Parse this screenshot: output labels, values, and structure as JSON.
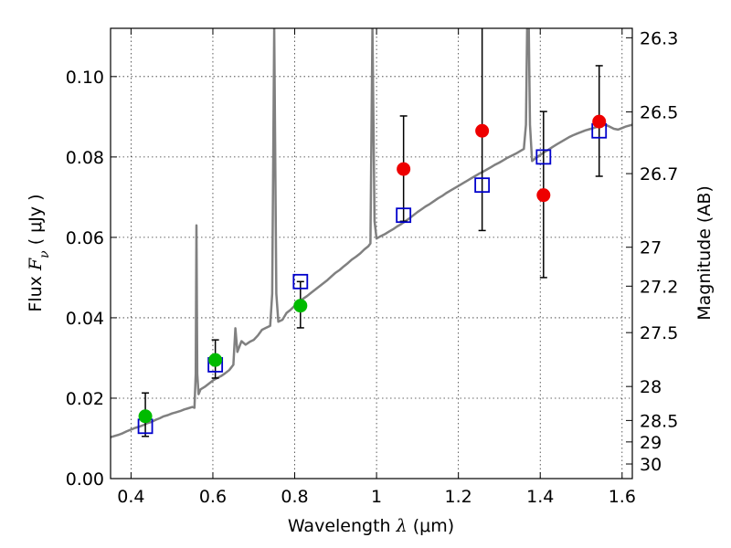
{
  "chart_data": {
    "type": "scatter",
    "xlabel": {
      "prefix": "Wavelength  ",
      "symbol": "λ",
      "unit": " (μm)"
    },
    "ylabel": {
      "prefix": "Flux  ",
      "symbol": "F",
      "subscript": "ν",
      "unit": "  ( μJy )"
    },
    "y2label": "Magnitude (AB)",
    "xlim": [
      0.35,
      1.625
    ],
    "ylim": [
      0.0,
      0.112
    ],
    "grid": true,
    "x_ticks": [
      {
        "value": 0.4,
        "label": "0.4"
      },
      {
        "value": 0.6,
        "label": "0.6"
      },
      {
        "value": 0.8,
        "label": "0.8"
      },
      {
        "value": 1.0,
        "label": "1"
      },
      {
        "value": 1.2,
        "label": "1.2"
      },
      {
        "value": 1.4,
        "label": "1.4"
      },
      {
        "value": 1.6,
        "label": "1.6"
      }
    ],
    "y_ticks": [
      {
        "value": 0.0,
        "label": "0.00"
      },
      {
        "value": 0.02,
        "label": "0.02"
      },
      {
        "value": 0.04,
        "label": "0.04"
      },
      {
        "value": 0.06,
        "label": "0.06"
      },
      {
        "value": 0.08,
        "label": "0.08"
      },
      {
        "value": 0.1,
        "label": "0.10"
      }
    ],
    "magnitude_ticks": [
      {
        "value": 26.3,
        "label": "26.3"
      },
      {
        "value": 26.5,
        "label": "26.5"
      },
      {
        "value": 26.7,
        "label": "26.7"
      },
      {
        "value": 27.0,
        "label": "27"
      },
      {
        "value": 27.2,
        "label": "27.2"
      },
      {
        "value": 27.5,
        "label": "27.5"
      },
      {
        "value": 28.0,
        "label": "28"
      },
      {
        "value": 28.5,
        "label": "28.5"
      },
      {
        "value": 29.0,
        "label": "29"
      },
      {
        "value": 30.0,
        "label": "30"
      }
    ],
    "model_spectrum": {
      "color": "#808080",
      "points": [
        [
          0.35,
          0.0103
        ],
        [
          0.36,
          0.0106
        ],
        [
          0.37,
          0.0109
        ],
        [
          0.38,
          0.0113
        ],
        [
          0.39,
          0.0118
        ],
        [
          0.4,
          0.0122
        ],
        [
          0.41,
          0.0126
        ],
        [
          0.42,
          0.0129
        ],
        [
          0.43,
          0.0133
        ],
        [
          0.44,
          0.0138
        ],
        [
          0.45,
          0.0141
        ],
        [
          0.46,
          0.0146
        ],
        [
          0.47,
          0.015
        ],
        [
          0.48,
          0.0155
        ],
        [
          0.49,
          0.0158
        ],
        [
          0.5,
          0.0162
        ],
        [
          0.51,
          0.0165
        ],
        [
          0.52,
          0.0168
        ],
        [
          0.53,
          0.0172
        ],
        [
          0.54,
          0.0175
        ],
        [
          0.55,
          0.0178
        ],
        [
          0.555,
          0.0176
        ],
        [
          0.558,
          0.026
        ],
        [
          0.56,
          0.063
        ],
        [
          0.562,
          0.026
        ],
        [
          0.565,
          0.021
        ],
        [
          0.57,
          0.0222
        ],
        [
          0.58,
          0.0228
        ],
        [
          0.59,
          0.0236
        ],
        [
          0.6,
          0.0244
        ],
        [
          0.61,
          0.025
        ],
        [
          0.62,
          0.0255
        ],
        [
          0.63,
          0.0262
        ],
        [
          0.64,
          0.027
        ],
        [
          0.65,
          0.0283
        ],
        [
          0.655,
          0.0374
        ],
        [
          0.66,
          0.0315
        ],
        [
          0.67,
          0.0342
        ],
        [
          0.68,
          0.0333
        ],
        [
          0.69,
          0.034
        ],
        [
          0.7,
          0.0345
        ],
        [
          0.71,
          0.0356
        ],
        [
          0.72,
          0.037
        ],
        [
          0.73,
          0.0375
        ],
        [
          0.74,
          0.038
        ],
        [
          0.745,
          0.046
        ],
        [
          0.75,
          0.112
        ],
        [
          0.755,
          0.046
        ],
        [
          0.76,
          0.039
        ],
        [
          0.77,
          0.0395
        ],
        [
          0.78,
          0.0412
        ],
        [
          0.79,
          0.042
        ],
        [
          0.8,
          0.043
        ],
        [
          0.81,
          0.0438
        ],
        [
          0.82,
          0.0447
        ],
        [
          0.83,
          0.0454
        ],
        [
          0.84,
          0.0462
        ],
        [
          0.85,
          0.047
        ],
        [
          0.86,
          0.0478
        ],
        [
          0.87,
          0.0486
        ],
        [
          0.88,
          0.0494
        ],
        [
          0.89,
          0.0503
        ],
        [
          0.9,
          0.0512
        ],
        [
          0.91,
          0.0519
        ],
        [
          0.92,
          0.0528
        ],
        [
          0.93,
          0.0536
        ],
        [
          0.94,
          0.0545
        ],
        [
          0.95,
          0.0552
        ],
        [
          0.96,
          0.056
        ],
        [
          0.97,
          0.057
        ],
        [
          0.98,
          0.0578
        ],
        [
          0.985,
          0.0585
        ],
        [
          0.99,
          0.112
        ],
        [
          0.995,
          0.064
        ],
        [
          1.0,
          0.0597
        ],
        [
          1.01,
          0.0603
        ],
        [
          1.02,
          0.0608
        ],
        [
          1.03,
          0.0614
        ],
        [
          1.04,
          0.062
        ],
        [
          1.05,
          0.0627
        ],
        [
          1.06,
          0.0633
        ],
        [
          1.07,
          0.064
        ],
        [
          1.08,
          0.0647
        ],
        [
          1.09,
          0.0655
        ],
        [
          1.1,
          0.0663
        ],
        [
          1.11,
          0.067
        ],
        [
          1.12,
          0.0677
        ],
        [
          1.13,
          0.0683
        ],
        [
          1.14,
          0.069
        ],
        [
          1.15,
          0.0697
        ],
        [
          1.16,
          0.0703
        ],
        [
          1.17,
          0.071
        ],
        [
          1.18,
          0.0716
        ],
        [
          1.19,
          0.0722
        ],
        [
          1.2,
          0.0728
        ],
        [
          1.21,
          0.0734
        ],
        [
          1.22,
          0.074
        ],
        [
          1.23,
          0.0746
        ],
        [
          1.24,
          0.0752
        ],
        [
          1.25,
          0.0758
        ],
        [
          1.26,
          0.0763
        ],
        [
          1.27,
          0.0769
        ],
        [
          1.28,
          0.0775
        ],
        [
          1.29,
          0.0781
        ],
        [
          1.3,
          0.0786
        ],
        [
          1.31,
          0.0792
        ],
        [
          1.32,
          0.0798
        ],
        [
          1.33,
          0.0803
        ],
        [
          1.34,
          0.0808
        ],
        [
          1.35,
          0.0814
        ],
        [
          1.36,
          0.082
        ],
        [
          1.365,
          0.088
        ],
        [
          1.368,
          0.112
        ],
        [
          1.372,
          0.112
        ],
        [
          1.375,
          0.088
        ],
        [
          1.38,
          0.079
        ],
        [
          1.39,
          0.0798
        ],
        [
          1.4,
          0.0805
        ],
        [
          1.41,
          0.0812
        ],
        [
          1.42,
          0.0818
        ],
        [
          1.43,
          0.0825
        ],
        [
          1.44,
          0.0831
        ],
        [
          1.45,
          0.0837
        ],
        [
          1.46,
          0.0843
        ],
        [
          1.47,
          0.0849
        ],
        [
          1.48,
          0.0854
        ],
        [
          1.49,
          0.0858
        ],
        [
          1.5,
          0.0862
        ],
        [
          1.51,
          0.0866
        ],
        [
          1.52,
          0.0869
        ],
        [
          1.53,
          0.0872
        ],
        [
          1.54,
          0.0875
        ],
        [
          1.55,
          0.0878
        ],
        [
          1.56,
          0.088
        ],
        [
          1.57,
          0.0875
        ],
        [
          1.58,
          0.087
        ],
        [
          1.59,
          0.0868
        ],
        [
          1.6,
          0.0872
        ],
        [
          1.61,
          0.0876
        ],
        [
          1.625,
          0.088
        ]
      ]
    },
    "model_photometry": {
      "marker": "open-square",
      "color": "#0000cc",
      "points": [
        {
          "x": 0.435,
          "y": 0.013
        },
        {
          "x": 0.606,
          "y": 0.0283
        },
        {
          "x": 0.814,
          "y": 0.049
        },
        {
          "x": 1.066,
          "y": 0.0655
        },
        {
          "x": 1.258,
          "y": 0.073
        },
        {
          "x": 1.408,
          "y": 0.08
        },
        {
          "x": 1.544,
          "y": 0.0865
        }
      ]
    },
    "detections": {
      "marker": "filled-circle",
      "color": "#00bb00",
      "points": [
        {
          "x": 0.435,
          "y": 0.0155,
          "err_low": 0.0105,
          "err_high": 0.0213
        },
        {
          "x": 0.606,
          "y": 0.0295,
          "err_low": 0.025,
          "err_high": 0.0345
        },
        {
          "x": 0.814,
          "y": 0.043,
          "err_low": 0.0375,
          "err_high": 0.049
        }
      ]
    },
    "upper_limits": {
      "marker": "filled-circle",
      "color": "#ee0000",
      "points": [
        {
          "x": 1.066,
          "y": 0.077,
          "err_low": 0.064,
          "err_high": 0.0902
        },
        {
          "x": 1.258,
          "y": 0.0865,
          "err_low": 0.0617,
          "err_high": 0.115
        },
        {
          "x": 1.408,
          "y": 0.0705,
          "err_low": 0.05,
          "err_high": 0.0913
        },
        {
          "x": 1.544,
          "y": 0.0888,
          "err_low": 0.0752,
          "err_high": 0.1027
        }
      ]
    }
  }
}
